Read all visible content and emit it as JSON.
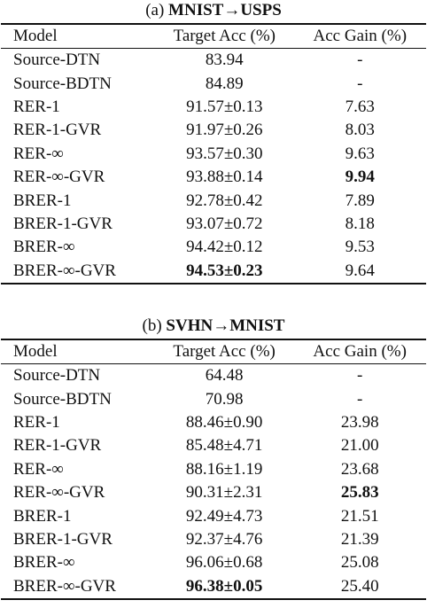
{
  "tables": [
    {
      "caption_prefix": "(a) ",
      "caption_bold": "MNIST→USPS",
      "headers": [
        "Model",
        "Target Acc (%)",
        "Acc Gain (%)"
      ],
      "rows": [
        [
          "Source-DTN",
          "83.94",
          "-"
        ],
        [
          "Source-BDTN",
          "84.89",
          "-"
        ],
        [
          "RER-1",
          "91.57±0.13",
          "7.63"
        ],
        [
          "RER-1-GVR",
          "91.97±0.26",
          "8.03"
        ],
        [
          "RER-∞",
          "93.57±0.30",
          "9.63"
        ],
        [
          "RER-∞-GVR",
          "93.88±0.14",
          "9.94"
        ],
        [
          "BRER-1",
          "92.78±0.42",
          "7.89"
        ],
        [
          "BRER-1-GVR",
          "93.07±0.72",
          "8.18"
        ],
        [
          "BRER-∞",
          "94.42±0.12",
          "9.53"
        ],
        [
          "BRER-∞-GVR",
          "94.53±0.23",
          "9.64"
        ]
      ]
    },
    {
      "caption_prefix": "(b) ",
      "caption_bold": "SVHN→MNIST",
      "headers": [
        "Model",
        "Target Acc (%)",
        "Acc Gain (%)"
      ],
      "rows": [
        [
          "Source-DTN",
          "64.48",
          "-"
        ],
        [
          "Source-BDTN",
          "70.98",
          "-"
        ],
        [
          "RER-1",
          "88.46±0.90",
          "23.98"
        ],
        [
          "RER-1-GVR",
          "85.48±4.71",
          "21.00"
        ],
        [
          "RER-∞",
          "88.16±1.19",
          "23.68"
        ],
        [
          "RER-∞-GVR",
          "90.31±2.31",
          "25.83"
        ],
        [
          "BRER-1",
          "92.49±4.73",
          "21.51"
        ],
        [
          "BRER-1-GVR",
          "92.37±4.76",
          "21.39"
        ],
        [
          "BRER-∞",
          "96.06±0.68",
          "25.08"
        ],
        [
          "BRER-∞-GVR",
          "96.38±0.05",
          "25.40"
        ]
      ]
    }
  ]
}
